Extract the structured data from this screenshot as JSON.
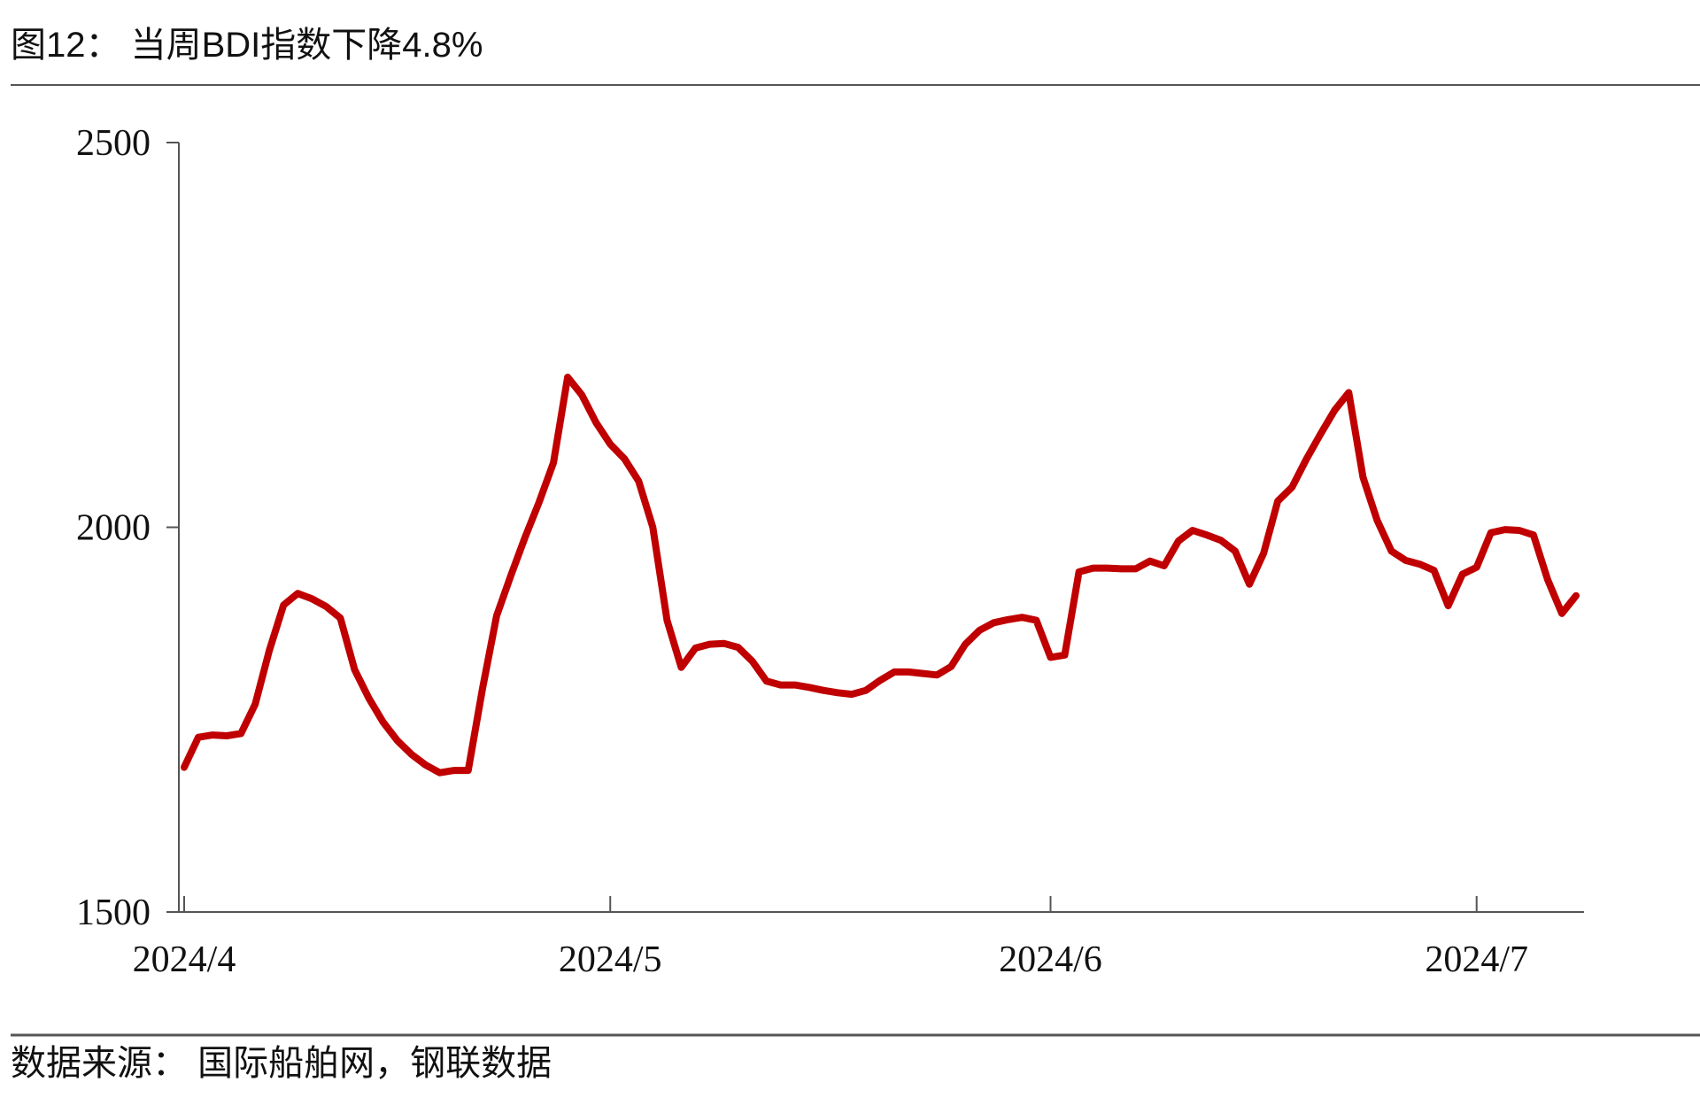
{
  "chart_data": {
    "type": "line",
    "title": "图12：  当周BDI指数下降4.8%",
    "source": "数据来源：  国际船舶网，钢联数据",
    "categories": [
      "2024/4",
      null,
      null,
      null,
      null,
      null,
      null,
      null,
      null,
      null,
      null,
      null,
      null,
      null,
      null,
      null,
      null,
      null,
      null,
      null,
      null,
      null,
      null,
      null,
      null,
      null,
      null,
      null,
      null,
      null,
      "2024/5",
      null,
      null,
      null,
      null,
      null,
      null,
      null,
      null,
      null,
      null,
      null,
      null,
      null,
      null,
      null,
      null,
      null,
      null,
      null,
      null,
      null,
      null,
      null,
      null,
      null,
      null,
      null,
      null,
      null,
      null,
      "2024/6",
      null,
      null,
      null,
      null,
      null,
      null,
      null,
      null,
      null,
      null,
      null,
      null,
      null,
      null,
      null,
      null,
      null,
      null,
      null,
      null,
      null,
      null,
      null,
      null,
      null,
      null,
      null,
      null,
      null,
      "2024/7",
      null,
      null,
      null,
      null,
      null,
      null,
      null
    ],
    "series": [
      {
        "name": "BDI",
        "color": "#c00000",
        "values": [
          1688,
          1727,
          1730,
          1729,
          1732,
          1770,
          1840,
          1899,
          1914,
          1907,
          1897,
          1882,
          1815,
          1778,
          1747,
          1723,
          1705,
          1691,
          1681,
          1684,
          1684,
          1790,
          1885,
          1937,
          1987,
          2033,
          2084,
          2195,
          2172,
          2136,
          2108,
          2089,
          2060,
          2000,
          1879,
          1818,
          1843,
          1848,
          1849,
          1844,
          1826,
          1800,
          1795,
          1795,
          1792,
          1788,
          1785,
          1783,
          1788,
          1801,
          1812,
          1812,
          1810,
          1808,
          1819,
          1848,
          1866,
          1876,
          1880,
          1883,
          1879,
          1831,
          1834,
          1942,
          1947,
          1947,
          1946,
          1946,
          1956,
          1950,
          1982,
          1996,
          1990,
          1983,
          1969,
          1926,
          1966,
          2034,
          2052,
          2088,
          2121,
          2152,
          2175,
          2065,
          2009,
          1969,
          1957,
          1952,
          1944,
          1898,
          1939,
          1948,
          1993,
          1997,
          1996,
          1990,
          1932,
          1888,
          1911
        ]
      }
    ],
    "ylim": [
      1500,
      2500
    ],
    "yticks": [
      1500,
      2000,
      2500
    ],
    "grid": false
  }
}
